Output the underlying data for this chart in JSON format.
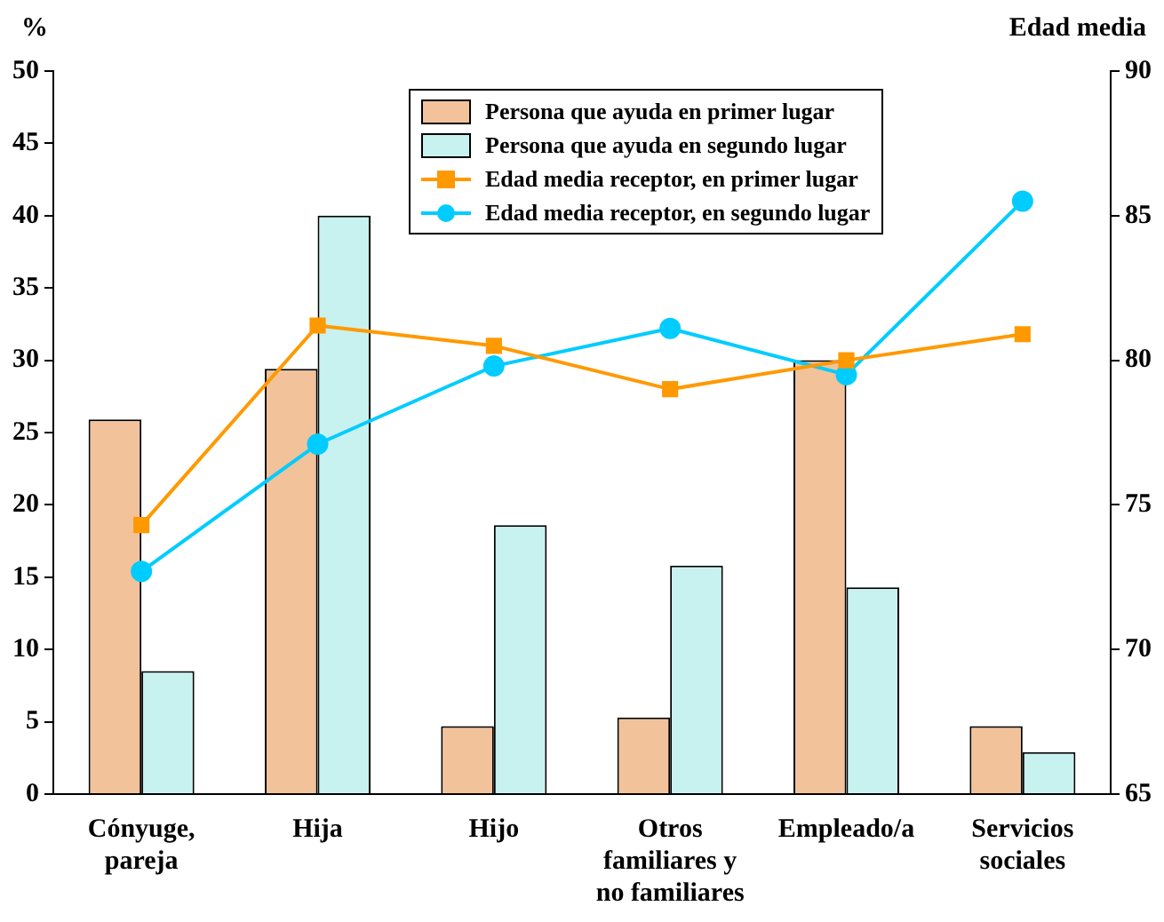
{
  "chart_data": {
    "type": "bar",
    "ylabel": "%",
    "y2label": "Edad media",
    "categories": [
      "Cónyuge, pareja",
      "Hija",
      "Hijo",
      "Otros familiares y no familiares",
      "Empleado/a",
      "Servicios sociales"
    ],
    "series": [
      {
        "name": "Persona que ayuda en primer lugar",
        "color": "#f2c29b",
        "values": [
          25.9,
          29.4,
          4.7,
          5.3,
          30,
          4.7
        ]
      },
      {
        "name": "Persona que ayuda en segundo lugar",
        "color": "#c8f2f0",
        "values": [
          8.5,
          40,
          18.6,
          15.8,
          14.3,
          2.9
        ]
      },
      {
        "name": "Edad media receptor, en primer lugar",
        "type": "line",
        "axis": "y2",
        "marker": "square",
        "color": "#ff9900",
        "values": [
          74.3,
          81.2,
          80.5,
          79.0,
          80.0,
          80.9
        ]
      },
      {
        "name": "Edad media receptor, en segundo lugar",
        "type": "line",
        "axis": "y2",
        "marker": "circle",
        "color": "#00ccff",
        "values": [
          72.7,
          77.1,
          79.8,
          81.1,
          79.5,
          85.5
        ]
      }
    ],
    "ylim": [
      0,
      50
    ],
    "yticks": [
      0,
      5,
      10,
      15,
      20,
      25,
      30,
      35,
      40,
      45,
      50
    ],
    "y2lim": [
      65,
      90
    ],
    "y2ticks": [
      65,
      70,
      75,
      80,
      85,
      90
    ],
    "grid": false,
    "legend": "top"
  }
}
